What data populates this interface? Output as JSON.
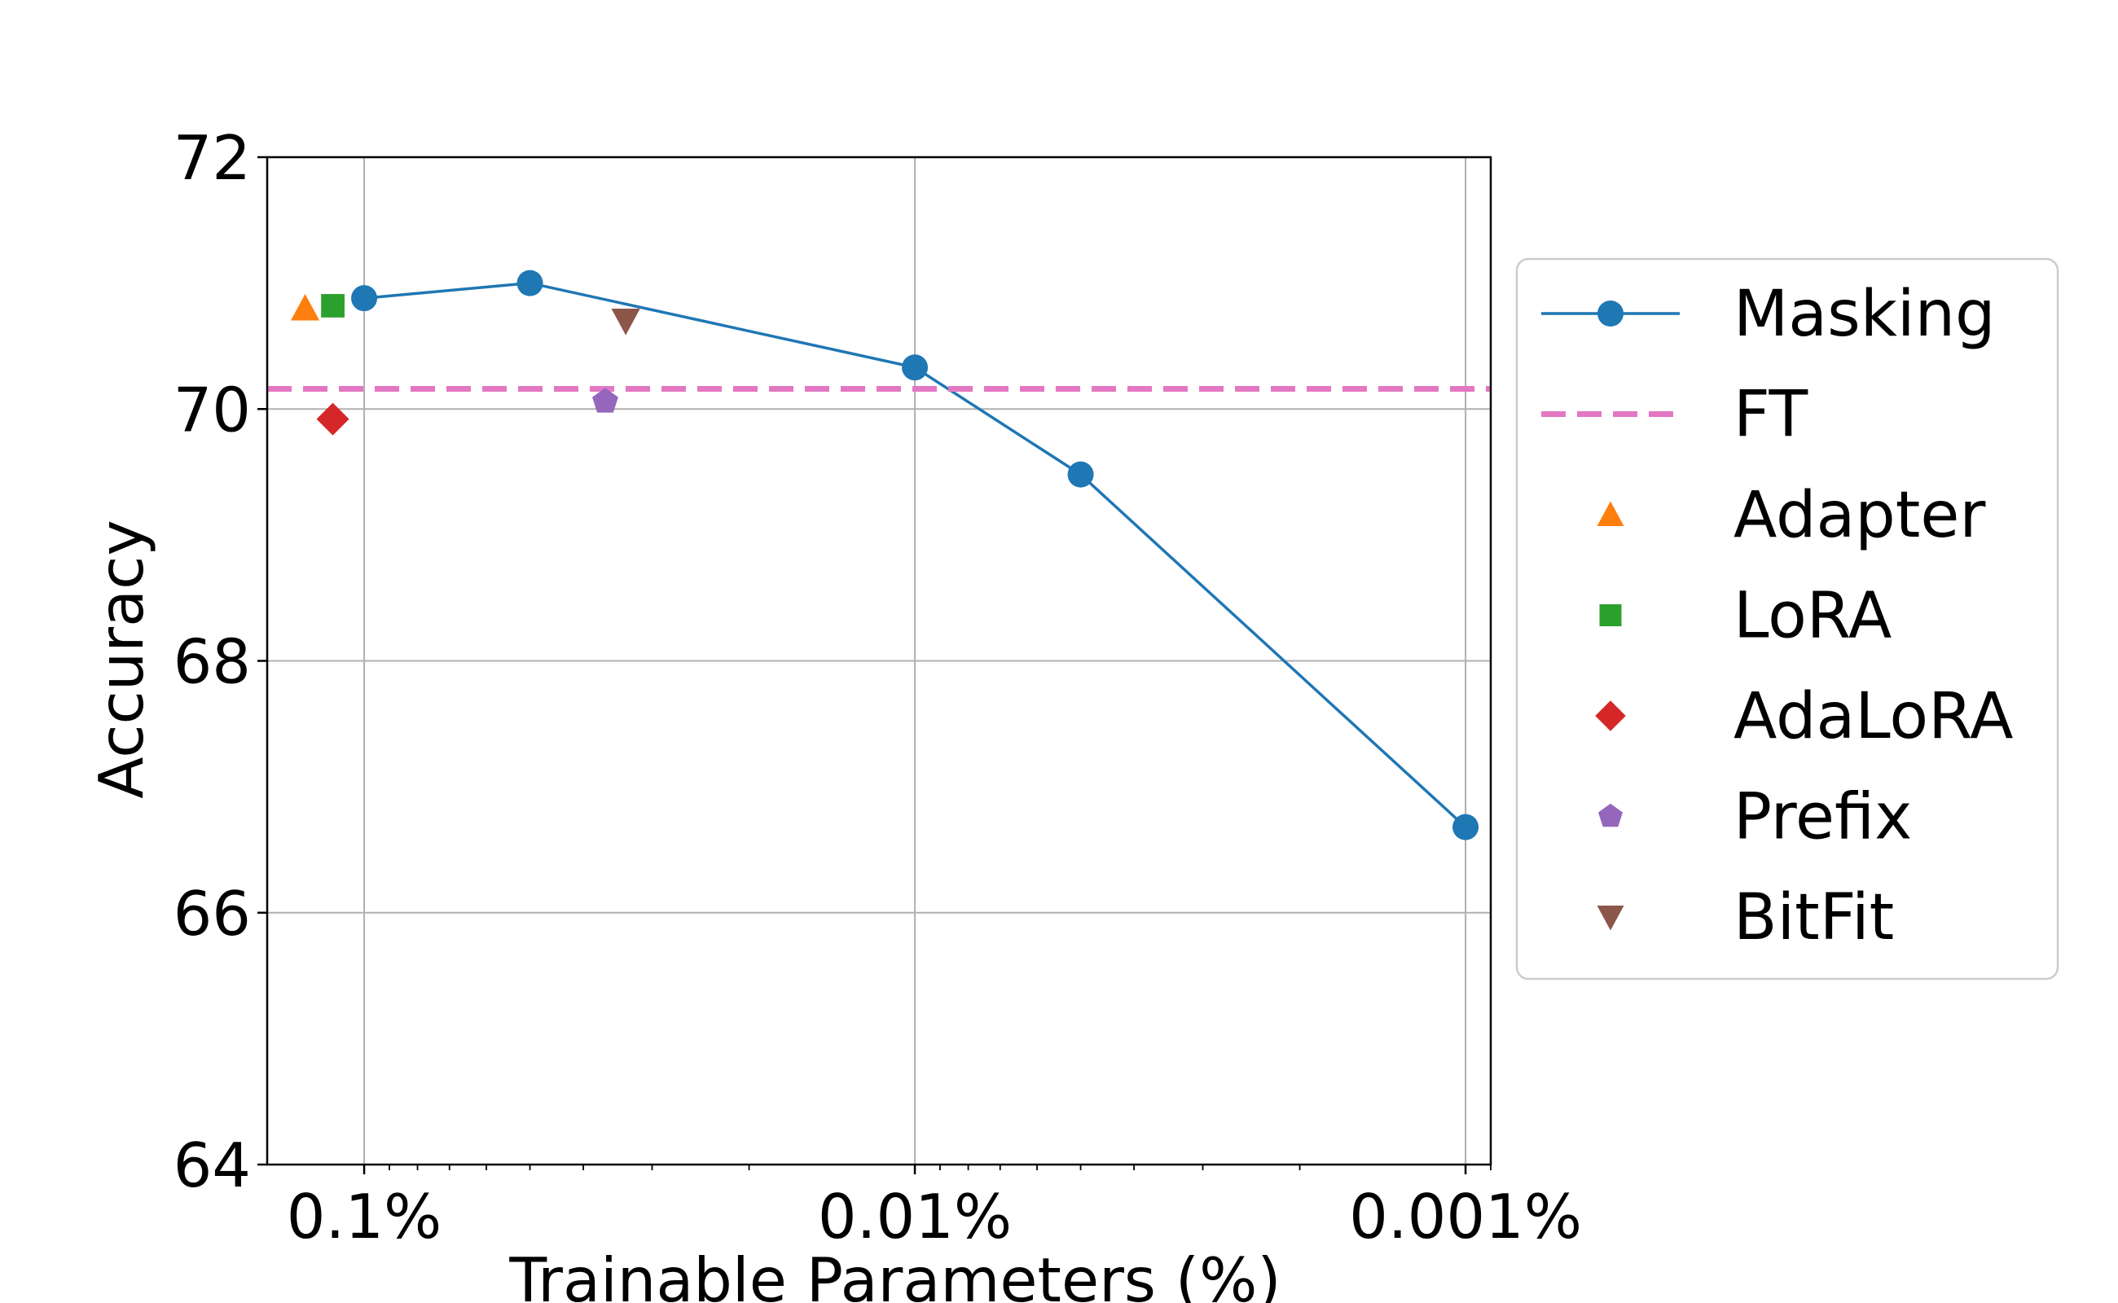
{
  "chart_data": {
    "type": "line",
    "xlabel": "Trainable Parameters (%)",
    "ylabel": "Accuracy",
    "x_scale": "log",
    "x_reversed": true,
    "xlim": [
      0.15,
      0.0009
    ],
    "ylim": [
      64,
      72
    ],
    "grid": true,
    "x_ticks": [
      {
        "value": 0.1,
        "label": "0.1%"
      },
      {
        "value": 0.01,
        "label": "0.01%"
      },
      {
        "value": 0.001,
        "label": "0.001%"
      }
    ],
    "y_ticks": [
      {
        "value": 64,
        "label": "64"
      },
      {
        "value": 66,
        "label": "66"
      },
      {
        "value": 68,
        "label": "68"
      },
      {
        "value": 70,
        "label": "70"
      },
      {
        "value": 72,
        "label": "72"
      }
    ],
    "series": [
      {
        "name": "Masking",
        "kind": "line-marker",
        "color": "#1f77b4",
        "marker": "circle",
        "points": [
          {
            "x": 0.1,
            "y": 70.88
          },
          {
            "x": 0.05,
            "y": 71.0
          },
          {
            "x": 0.01,
            "y": 70.33
          },
          {
            "x": 0.005,
            "y": 69.48
          },
          {
            "x": 0.001,
            "y": 66.68
          }
        ]
      },
      {
        "name": "FT",
        "kind": "hline",
        "color": "#e377c2",
        "y": 70.16
      },
      {
        "name": "Adapter",
        "kind": "marker",
        "color": "#ff7f0e",
        "marker": "triangle-up",
        "points": [
          {
            "x": 0.128,
            "y": 70.8
          }
        ]
      },
      {
        "name": "LoRA",
        "kind": "marker",
        "color": "#2ca02c",
        "marker": "square",
        "points": [
          {
            "x": 0.114,
            "y": 70.82
          }
        ]
      },
      {
        "name": "AdaLoRA",
        "kind": "marker",
        "color": "#d62728",
        "marker": "diamond",
        "points": [
          {
            "x": 0.114,
            "y": 69.92
          }
        ]
      },
      {
        "name": "Prefix",
        "kind": "marker",
        "color": "#9467bd",
        "marker": "pentagon",
        "points": [
          {
            "x": 0.0365,
            "y": 70.06
          }
        ]
      },
      {
        "name": "BitFit",
        "kind": "marker",
        "color": "#8c564b",
        "marker": "triangle-down",
        "points": [
          {
            "x": 0.0335,
            "y": 70.7
          }
        ]
      }
    ],
    "legend": {
      "position": "right",
      "entries": [
        "Masking",
        "FT",
        "Adapter",
        "LoRA",
        "AdaLoRA",
        "Prefix",
        "BitFit"
      ]
    }
  }
}
